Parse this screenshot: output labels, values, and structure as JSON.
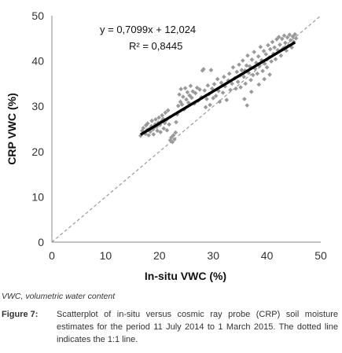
{
  "chart_data": {
    "type": "scatter",
    "xlabel": "In-situ VWC (%)",
    "ylabel": "CRP VWC (%)",
    "xlim": [
      0,
      50
    ],
    "ylim": [
      0,
      50
    ],
    "xticks": [
      "0",
      "10",
      "20",
      "30",
      "40",
      "50"
    ],
    "yticks": [
      "0",
      "10",
      "20",
      "30",
      "40",
      "50"
    ],
    "grid": false,
    "equation": "y = 0,7099x + 12,024",
    "r_squared": "R² = 0,8445",
    "regression": {
      "slope": 0.7099,
      "intercept": 12.024,
      "x_range": [
        16.5,
        45.2
      ]
    },
    "one_to_one_line": true,
    "point_color": "#9a9a9a",
    "line_color": "#000000",
    "points": [
      [
        16.5,
        23.5
      ],
      [
        16.8,
        24.6
      ],
      [
        17.0,
        25.2
      ],
      [
        17.2,
        24.1
      ],
      [
        17.4,
        23.9
      ],
      [
        17.5,
        25.8
      ],
      [
        17.7,
        24.8
      ],
      [
        17.8,
        26.2
      ],
      [
        18.0,
        23.6
      ],
      [
        18.1,
        25.0
      ],
      [
        18.3,
        24.4
      ],
      [
        18.5,
        25.6
      ],
      [
        18.6,
        26.8
      ],
      [
        18.8,
        24.9
      ],
      [
        18.9,
        23.8
      ],
      [
        19.0,
        25.3
      ],
      [
        19.2,
        26.0
      ],
      [
        19.3,
        27.1
      ],
      [
        19.5,
        25.5
      ],
      [
        19.6,
        24.6
      ],
      [
        19.8,
        26.4
      ],
      [
        19.9,
        27.5
      ],
      [
        20.1,
        25.9
      ],
      [
        20.2,
        24.3
      ],
      [
        20.4,
        26.7
      ],
      [
        20.5,
        28.0
      ],
      [
        20.7,
        27.2
      ],
      [
        20.8,
        25.1
      ],
      [
        21.0,
        26.3
      ],
      [
        21.1,
        28.6
      ],
      [
        21.3,
        27.0
      ],
      [
        21.4,
        24.7
      ],
      [
        21.6,
        29.1
      ],
      [
        21.8,
        26.0
      ],
      [
        22.0,
        22.5
      ],
      [
        22.2,
        23.1
      ],
      [
        22.4,
        22.1
      ],
      [
        22.6,
        23.6
      ],
      [
        22.8,
        22.7
      ],
      [
        23.0,
        24.2
      ],
      [
        23.1,
        26.5
      ],
      [
        23.3,
        28.2
      ],
      [
        23.5,
        30.1
      ],
      [
        23.7,
        32.6
      ],
      [
        23.9,
        31.0
      ],
      [
        24.0,
        33.8
      ],
      [
        24.2,
        30.4
      ],
      [
        24.4,
        32.1
      ],
      [
        24.6,
        29.3
      ],
      [
        24.8,
        34.0
      ],
      [
        25.0,
        31.5
      ],
      [
        25.2,
        33.1
      ],
      [
        25.4,
        30.8
      ],
      [
        25.6,
        32.4
      ],
      [
        25.8,
        34.5
      ],
      [
        26.0,
        31.9
      ],
      [
        26.2,
        33.3
      ],
      [
        26.5,
        30.6
      ],
      [
        26.7,
        32.9
      ],
      [
        27.0,
        34.1
      ],
      [
        27.2,
        31.2
      ],
      [
        27.5,
        33.7
      ],
      [
        27.8,
        32.0
      ],
      [
        28.0,
        37.9
      ],
      [
        28.2,
        38.2
      ],
      [
        28.4,
        33.5
      ],
      [
        28.6,
        29.8
      ],
      [
        28.8,
        31.6
      ],
      [
        29.0,
        34.6
      ],
      [
        29.2,
        32.7
      ],
      [
        29.4,
        30.3
      ],
      [
        29.6,
        38.0
      ],
      [
        29.8,
        33.9
      ],
      [
        30.0,
        31.8
      ],
      [
        30.2,
        34.9
      ],
      [
        30.5,
        32.3
      ],
      [
        30.8,
        36.0
      ],
      [
        31.0,
        33.4
      ],
      [
        31.2,
        31.0
      ],
      [
        31.5,
        35.2
      ],
      [
        31.8,
        33.0
      ],
      [
        32.0,
        36.5
      ],
      [
        32.2,
        34.4
      ],
      [
        32.5,
        31.4
      ],
      [
        32.8,
        35.7
      ],
      [
        33.0,
        37.2
      ],
      [
        33.2,
        33.6
      ],
      [
        33.5,
        35.0
      ],
      [
        33.7,
        38.6
      ],
      [
        34.0,
        36.2
      ],
      [
        34.2,
        33.9
      ],
      [
        34.4,
        37.6
      ],
      [
        34.6,
        35.4
      ],
      [
        34.8,
        39.2
      ],
      [
        35.0,
        36.8
      ],
      [
        35.1,
        34.2
      ],
      [
        35.3,
        38.0
      ],
      [
        35.5,
        40.1
      ],
      [
        35.7,
        36.5
      ],
      [
        35.9,
        37.9
      ],
      [
        36.0,
        35.0
      ],
      [
        36.2,
        39.0
      ],
      [
        36.4,
        41.2
      ],
      [
        36.6,
        37.4
      ],
      [
        36.8,
        38.8
      ],
      [
        37.0,
        35.8
      ],
      [
        37.2,
        40.3
      ],
      [
        37.4,
        36.9
      ],
      [
        37.6,
        42.0
      ],
      [
        37.8,
        38.3
      ],
      [
        38.0,
        39.6
      ],
      [
        38.2,
        37.2
      ],
      [
        38.4,
        41.0
      ],
      [
        38.6,
        38.9
      ],
      [
        38.8,
        43.1
      ],
      [
        39.0,
        40.2
      ],
      [
        39.2,
        37.8
      ],
      [
        39.4,
        42.2
      ],
      [
        39.6,
        39.4
      ],
      [
        39.8,
        41.5
      ],
      [
        40.0,
        38.6
      ],
      [
        40.2,
        43.5
      ],
      [
        40.4,
        40.8
      ],
      [
        40.6,
        42.6
      ],
      [
        40.8,
        39.9
      ],
      [
        41.0,
        44.2
      ],
      [
        41.2,
        41.6
      ],
      [
        41.4,
        43.0
      ],
      [
        41.6,
        40.4
      ],
      [
        41.8,
        44.8
      ],
      [
        42.0,
        42.4
      ],
      [
        42.2,
        45.3
      ],
      [
        42.4,
        43.6
      ],
      [
        42.6,
        41.2
      ],
      [
        42.8,
        44.9
      ],
      [
        43.0,
        42.8
      ],
      [
        43.2,
        45.6
      ],
      [
        43.4,
        44.0
      ],
      [
        43.6,
        42.3
      ],
      [
        43.8,
        45.2
      ],
      [
        44.0,
        43.4
      ],
      [
        44.2,
        45.8
      ],
      [
        44.4,
        44.6
      ],
      [
        44.6,
        43.0
      ],
      [
        44.8,
        45.4
      ],
      [
        45.0,
        44.2
      ],
      [
        45.2,
        45.9
      ],
      [
        45.4,
        45.0
      ],
      [
        36.3,
        30.2
      ],
      [
        35.8,
        31.6
      ],
      [
        37.1,
        33.2
      ],
      [
        38.5,
        34.8
      ],
      [
        39.5,
        36.0
      ],
      [
        40.5,
        37.0
      ]
    ]
  },
  "notes": {
    "abbreviation": "VWC, volumetric water content",
    "figure_label": "Figure 7:",
    "caption": "Scatterplot of in-situ versus cosmic ray probe (CRP) soil moisture estimates for the period 11 July 2014 to 1 March 2015. The dotted line indicates the 1:1 line."
  }
}
